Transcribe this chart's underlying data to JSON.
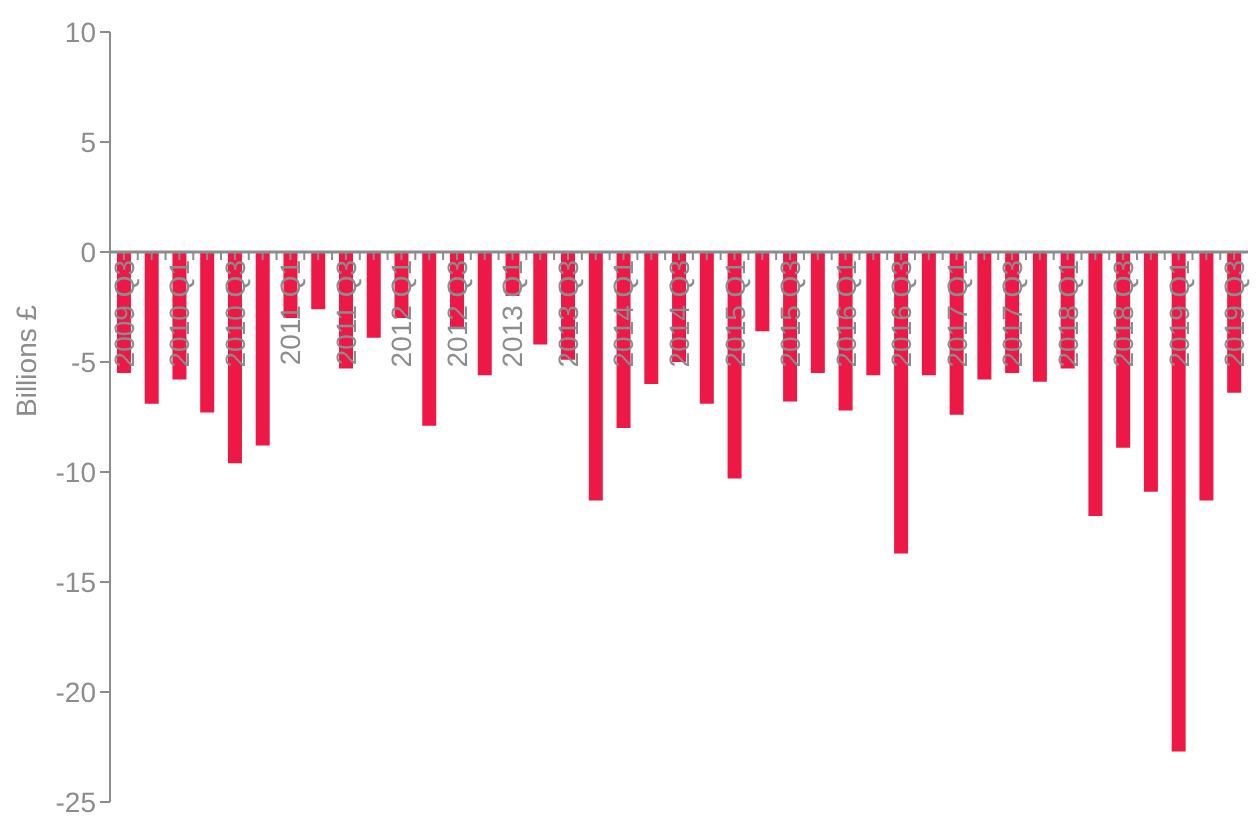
{
  "chart_data": {
    "type": "bar",
    "ylabel": "Billions £",
    "categories": [
      "2009 Q3",
      null,
      "2010 Q1",
      null,
      "2010 Q3",
      null,
      "2011 Q1",
      null,
      "2011 Q3",
      null,
      "2012 Q1",
      null,
      "2012 Q3",
      null,
      "2013 Q1",
      null,
      "2013 Q3",
      null,
      "2014 Q1",
      null,
      "2014 Q3",
      null,
      "2015 Q1",
      null,
      "2015 Q3",
      null,
      "2016 Q1",
      null,
      "2016 Q3",
      null,
      "2017 Q1",
      null,
      "2017 Q3",
      null,
      "2018 Q1",
      null,
      "2018 Q3",
      null,
      "2019 Q1",
      null,
      "2019 Q3"
    ],
    "values": [
      -5.5,
      -6.9,
      -5.8,
      -7.3,
      -9.6,
      -8.8,
      -3.0,
      -2.6,
      -5.3,
      -3.9,
      -3.0,
      -7.9,
      -3.5,
      -5.6,
      -2.0,
      -4.2,
      -4.9,
      -11.3,
      -8.0,
      -6.0,
      -5.0,
      -6.9,
      -10.3,
      -3.6,
      -6.8,
      -5.5,
      -7.2,
      -5.6,
      -13.7,
      -5.6,
      -7.4,
      -5.8,
      -5.5,
      -5.9,
      -5.3,
      -12.0,
      -8.9,
      -10.9,
      -22.7,
      -11.3,
      -6.4
    ],
    "color": "#ee1847",
    "ylim": [
      -25,
      10
    ],
    "yticks": [
      -25,
      -20,
      -15,
      -10,
      -5,
      0,
      5,
      10
    ],
    "grid": false,
    "legend": false
  }
}
